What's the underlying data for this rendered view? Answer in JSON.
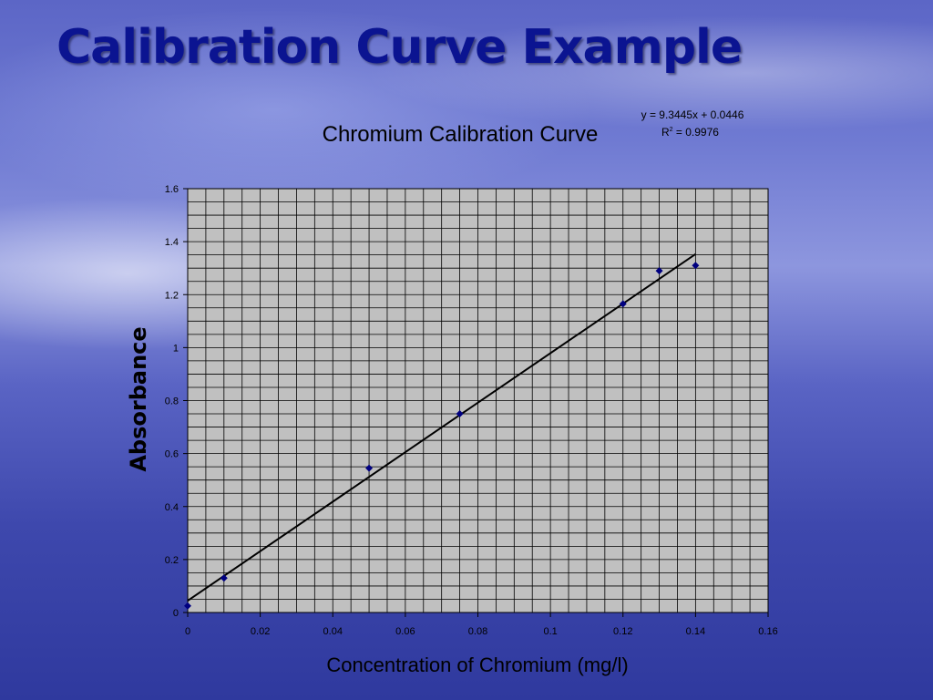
{
  "slide": {
    "title": "Calibration Curve Example"
  },
  "chart_data": {
    "type": "scatter",
    "title": "Chromium Calibration Curve",
    "xlabel": "Concentration of Chromium (mg/l)",
    "ylabel": "Absorbance",
    "xlim": [
      0,
      0.16
    ],
    "ylim": [
      0,
      1.6
    ],
    "x_ticks": [
      "0",
      "0.02",
      "0.04",
      "0.06",
      "0.08",
      "0.1",
      "0.12",
      "0.14",
      "0.16"
    ],
    "y_ticks": [
      "0",
      "0.2",
      "0.4",
      "0.6",
      "0.8",
      "1",
      "1.2",
      "1.4",
      "1.6"
    ],
    "grid": true,
    "points": [
      {
        "x": 0,
        "y": 0.025
      },
      {
        "x": 0.01,
        "y": 0.13
      },
      {
        "x": 0.05,
        "y": 0.545
      },
      {
        "x": 0.075,
        "y": 0.75
      },
      {
        "x": 0.12,
        "y": 1.165
      },
      {
        "x": 0.13,
        "y": 1.29
      },
      {
        "x": 0.14,
        "y": 1.31
      }
    ],
    "trendline": {
      "slope": 9.3445,
      "intercept": 0.0446,
      "x_range": [
        0,
        0.14
      ],
      "equation": "y = 9.3445x + 0.0446",
      "r_label": "R",
      "r_exponent": "2",
      "r_value": " = 0.9976"
    },
    "colors": {
      "plot_bg": "#c0c0c0",
      "grid": "#000000",
      "marker": "#000080",
      "line": "#000000"
    }
  }
}
